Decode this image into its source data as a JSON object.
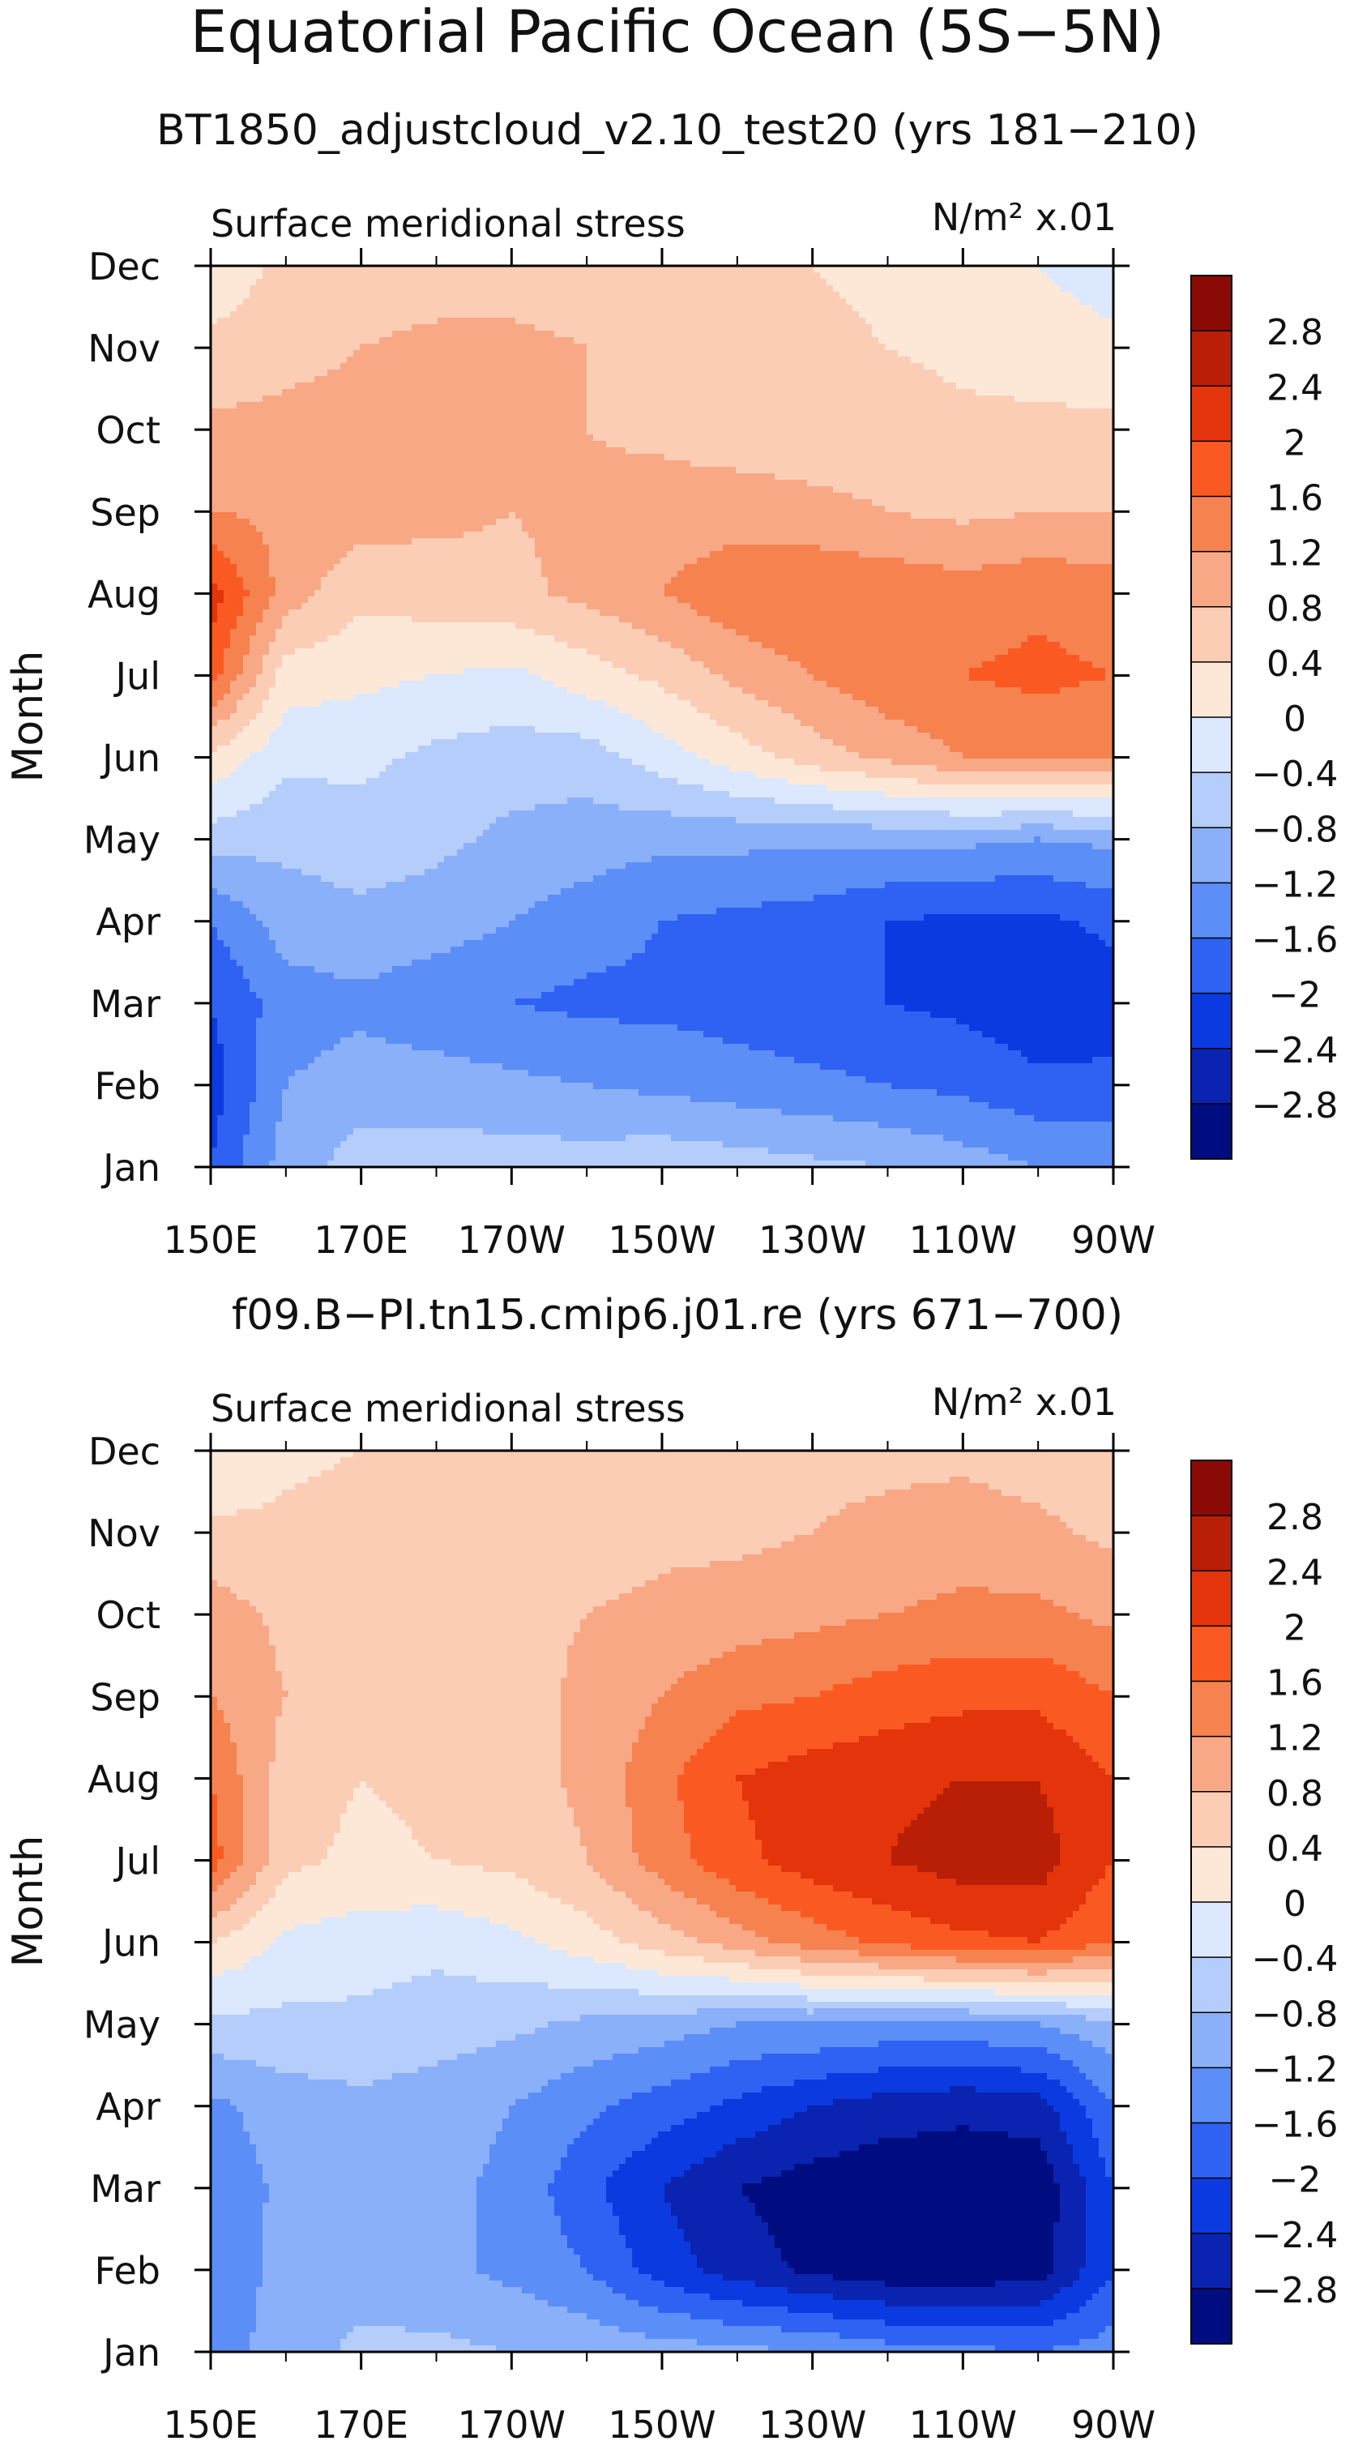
{
  "figure": {
    "title": "Equatorial Pacific Ocean (5S−5N)"
  },
  "colors": {
    "levels": [
      -2.8,
      -2.4,
      -2,
      -1.6,
      -1.2,
      -0.8,
      -0.4,
      0,
      0.4,
      0.8,
      1.2,
      1.6,
      2,
      2.4,
      2.8
    ],
    "palette": [
      "#000d80",
      "#0a23b0",
      "#0b3ae0",
      "#2f62f2",
      "#5b8ef7",
      "#8ab0f9",
      "#b5cdfb",
      "#dbe8fd",
      "#fde8d8",
      "#fccdb5",
      "#f9a886",
      "#f6824f",
      "#fa5a22",
      "#e3340b",
      "#b81f06",
      "#8c0a05"
    ],
    "bin_labels": [
      "−2.8",
      "−2.4",
      "−2",
      "−1.6",
      "−1.2",
      "−0.8",
      "−0.4",
      "0",
      "0.4",
      "0.8",
      "1.2",
      "1.6",
      "2",
      "2.4",
      "2.8"
    ]
  },
  "chart_data": [
    {
      "type": "heatmap",
      "subtitle": "BT1850_adjustcloud_v2.10_test20 (yrs 181−210)",
      "field_label": "Surface meridional stress",
      "units_label": "N/m² x.01",
      "ylabel": "Month",
      "x_tick_labels": [
        "150E",
        "170E",
        "170W",
        "150W",
        "130W",
        "110W",
        "90W"
      ],
      "y_tick_labels": [
        "Jan",
        "Feb",
        "Mar",
        "Apr",
        "May",
        "Jun",
        "Jul",
        "Aug",
        "Sep",
        "Oct",
        "Nov",
        "Dec"
      ],
      "x_grid_longitude_E": [
        150,
        160,
        170,
        180,
        190,
        200,
        210,
        220,
        230,
        240,
        250,
        260,
        270
      ],
      "values_by_month": [
        [
          -2.0,
          -1.0,
          -0.6,
          -0.6,
          -0.6,
          -0.6,
          -0.5,
          -0.6,
          -0.7,
          -0.8,
          -1.0,
          -1.2,
          -1.2
        ],
        [
          -2.2,
          -1.2,
          -1.0,
          -1.0,
          -1.1,
          -1.2,
          -1.3,
          -1.4,
          -1.5,
          -1.6,
          -1.7,
          -1.9,
          -1.9
        ],
        [
          -2.0,
          -1.4,
          -1.3,
          -1.5,
          -1.6,
          -1.7,
          -1.7,
          -1.8,
          -1.9,
          -2.0,
          -2.1,
          -2.3,
          -2.2
        ],
        [
          -1.6,
          -1.0,
          -0.9,
          -1.0,
          -1.2,
          -1.4,
          -1.6,
          -1.7,
          -1.8,
          -2.0,
          -2.1,
          -2.1,
          -1.9
        ],
        [
          -0.6,
          -0.7,
          -0.6,
          -0.7,
          -0.9,
          -1.0,
          -1.1,
          -1.1,
          -1.1,
          -1.1,
          -1.1,
          -1.2,
          -1.1
        ],
        [
          0.3,
          -0.3,
          -0.3,
          -0.5,
          -0.6,
          -0.6,
          -0.2,
          0.2,
          0.6,
          0.9,
          1.2,
          1.3,
          1.2
        ],
        [
          1.8,
          0.2,
          0.1,
          0.0,
          -0.1,
          0.2,
          0.5,
          0.9,
          1.2,
          1.5,
          1.6,
          1.7,
          1.6
        ],
        [
          2.2,
          1.0,
          0.5,
          0.6,
          0.7,
          0.9,
          1.2,
          1.5,
          1.6,
          1.5,
          1.4,
          1.5,
          1.4
        ],
        [
          1.2,
          1.1,
          1.0,
          0.9,
          0.8,
          0.9,
          1.0,
          1.0,
          0.9,
          0.8,
          0.7,
          0.8,
          0.8
        ],
        [
          0.9,
          0.9,
          0.9,
          0.9,
          0.9,
          0.8,
          0.7,
          0.6,
          0.6,
          0.6,
          0.5,
          0.5,
          0.5
        ],
        [
          0.5,
          0.7,
          0.8,
          0.9,
          0.9,
          0.8,
          0.7,
          0.6,
          0.5,
          0.4,
          0.3,
          0.2,
          0.1
        ],
        [
          0.1,
          0.5,
          0.6,
          0.6,
          0.6,
          0.6,
          0.5,
          0.5,
          0.4,
          0.3,
          0.2,
          0.0,
          -0.2
        ]
      ],
      "colorbar": true
    },
    {
      "type": "heatmap",
      "subtitle": "f09.B−PI.tn15.cmip6.j01.re (yrs 671−700)",
      "field_label": "Surface meridional stress",
      "units_label": "N/m² x.01",
      "ylabel": "Month",
      "x_tick_labels": [
        "150E",
        "170E",
        "170W",
        "150W",
        "130W",
        "110W",
        "90W"
      ],
      "y_tick_labels": [
        "Jan",
        "Feb",
        "Mar",
        "Apr",
        "May",
        "Jun",
        "Jul",
        "Aug",
        "Sep",
        "Oct",
        "Nov",
        "Dec"
      ],
      "x_grid_longitude_E": [
        150,
        160,
        170,
        180,
        190,
        200,
        210,
        220,
        230,
        240,
        250,
        260,
        270
      ],
      "values_by_month": [
        [
          -1.4,
          -1.0,
          -0.7,
          -0.7,
          -0.8,
          -0.9,
          -1.0,
          -1.1,
          -1.2,
          -1.4,
          -1.5,
          -1.6,
          -1.4
        ],
        [
          -1.6,
          -1.0,
          -1.0,
          -1.1,
          -1.3,
          -1.6,
          -2.2,
          -2.6,
          -2.9,
          -3.1,
          -3.1,
          -3.0,
          -2.0
        ],
        [
          -1.5,
          -1.1,
          -1.0,
          -1.1,
          -1.3,
          -1.9,
          -2.4,
          -2.8,
          -3.0,
          -3.1,
          -3.1,
          -3.1,
          -2.0
        ],
        [
          -1.3,
          -1.0,
          -0.9,
          -1.0,
          -1.2,
          -1.5,
          -1.8,
          -2.1,
          -2.4,
          -2.6,
          -2.7,
          -2.6,
          -1.6
        ],
        [
          -0.5,
          -0.5,
          -0.5,
          -0.6,
          -0.7,
          -0.9,
          -1.0,
          -1.2,
          -1.2,
          -1.3,
          -1.3,
          -1.2,
          -0.9
        ],
        [
          0.4,
          -0.1,
          -0.2,
          -0.3,
          -0.1,
          0.2,
          0.6,
          1.0,
          1.4,
          1.7,
          1.9,
          2.0,
          1.6
        ],
        [
          1.8,
          0.5,
          0.3,
          0.4,
          0.5,
          0.8,
          1.4,
          1.9,
          2.2,
          2.4,
          2.6,
          2.6,
          2.0
        ],
        [
          1.6,
          0.6,
          0.4,
          0.5,
          0.6,
          0.9,
          1.5,
          2.0,
          2.2,
          2.3,
          2.4,
          2.4,
          2.0
        ],
        [
          1.2,
          0.8,
          0.8,
          0.7,
          0.6,
          0.9,
          1.2,
          1.5,
          1.6,
          1.8,
          1.9,
          1.9,
          1.6
        ],
        [
          1.0,
          0.7,
          0.7,
          0.7,
          0.7,
          0.8,
          0.9,
          1.0,
          1.1,
          1.2,
          1.3,
          1.3,
          1.1
        ],
        [
          0.5,
          0.5,
          0.6,
          0.6,
          0.6,
          0.6,
          0.7,
          0.7,
          0.8,
          0.9,
          1.0,
          0.9,
          0.7
        ],
        [
          0.0,
          0.3,
          0.4,
          0.5,
          0.5,
          0.5,
          0.6,
          0.6,
          0.7,
          0.7,
          0.7,
          0.6,
          0.4
        ]
      ],
      "colorbar": true
    }
  ]
}
